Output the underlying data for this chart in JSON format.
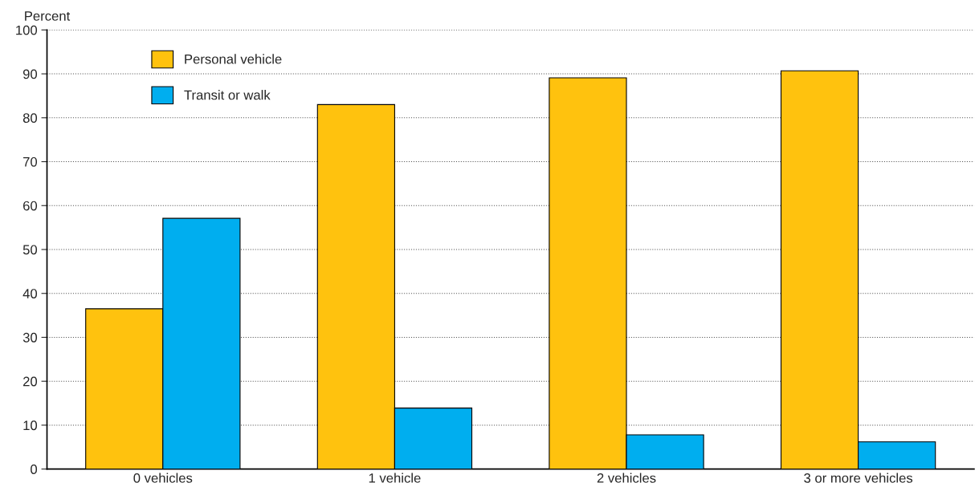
{
  "chart_data": {
    "type": "bar",
    "ylabel": "Percent",
    "categories": [
      "0 vehicles",
      "1 vehicle",
      "2 vehicles",
      "3 or more vehicles"
    ],
    "series": [
      {
        "name": "Personal vehicle",
        "color": "#ffc20e",
        "values": [
          36.5,
          83.0,
          89.1,
          90.7
        ]
      },
      {
        "name": "Transit or walk",
        "color": "#00aeef",
        "values": [
          57.1,
          13.9,
          7.8,
          6.2
        ]
      }
    ],
    "ylim": [
      0,
      100
    ],
    "yticks": [
      0,
      10,
      20,
      30,
      40,
      50,
      60,
      70,
      80,
      90,
      100
    ],
    "grid": "y",
    "legend": "top left"
  }
}
